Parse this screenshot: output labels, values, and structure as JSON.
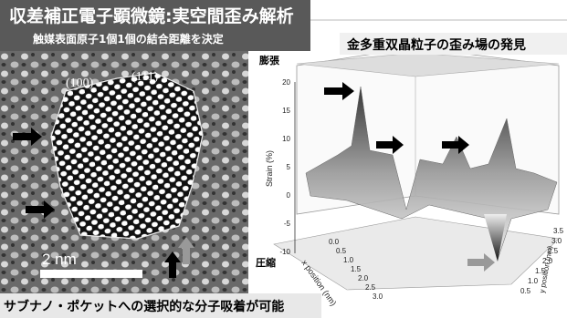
{
  "header": {
    "title": "収差補正電子顕微鏡:実空間歪み解析",
    "subtitle": "触媒表面原子1個1個の結合距離を決定"
  },
  "tem_image": {
    "facet_left": "(100)",
    "facet_right": "(111)",
    "scale_bar": "2 nm"
  },
  "plot": {
    "title": "金多重双晶粒子の歪み場の発見",
    "expansion": "膨張",
    "compression": "圧縮",
    "z_axis_label": "Strain (%)",
    "z_ticks": [
      "20",
      "15",
      "10",
      "5",
      "0",
      "-5",
      "-10"
    ],
    "x_axis_label": "x position (nm)",
    "x_ticks": [
      "0.0",
      "0.5",
      "1.0",
      "1.5",
      "2.0",
      "2.5",
      "3.0"
    ],
    "y_axis_label": "y position (nm)",
    "y_ticks": [
      "0.5",
      "1.0",
      "1.5",
      "2.0",
      "2.5",
      "3.0",
      "3.5"
    ]
  },
  "footer": {
    "caption": "サブナノ・ポケットへの選択的な分子吸着が可能"
  }
}
